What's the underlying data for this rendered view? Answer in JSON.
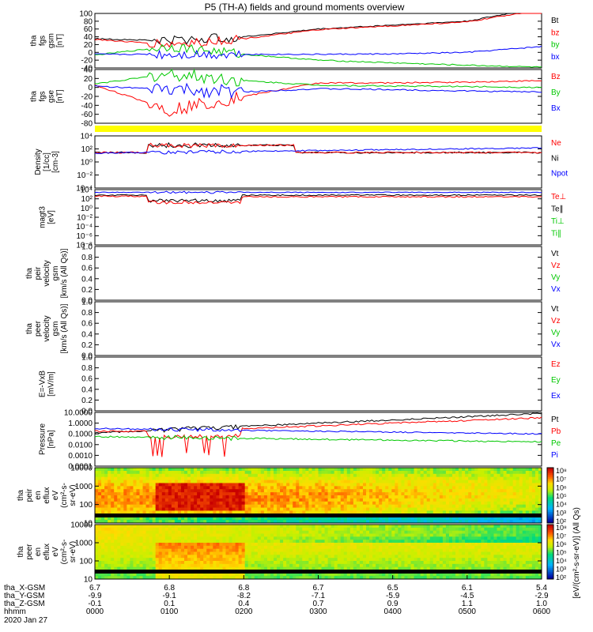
{
  "title": "P5 (TH-A) fields and ground moments overview",
  "footer": {
    "date": "2020 Jan 27",
    "row_labels": [
      "tha_X-GSM",
      "tha_Y-GSM",
      "tha_Z-GSM",
      "hhmm"
    ],
    "rows": [
      [
        "6.7",
        "6.8",
        "6.8",
        "6.7",
        "6.5",
        "6.1",
        "5.4"
      ],
      [
        "-9.9",
        "-9.1",
        "-8.2",
        "-7.1",
        "-5.9",
        "-4.5",
        "-2.9"
      ],
      [
        "-0.1",
        "0.1",
        "0.4",
        "0.7",
        "0.9",
        "1.1",
        "1.0"
      ],
      [
        "0000",
        "0100",
        "0200",
        "0300",
        "0400",
        "0500",
        "0600"
      ]
    ]
  },
  "colors": {
    "black": "#000000",
    "red": "#ff0000",
    "green": "#00c800",
    "blue": "#0000ff",
    "yellow": "#ffff00"
  },
  "panels": [
    {
      "id": "fgs-gsm",
      "ylabel": [
        "tha",
        "fgs",
        "gsm",
        "[nT]"
      ],
      "ticks": [
        "100",
        "80",
        "60",
        "40",
        "20",
        "0",
        "-20",
        "-40"
      ],
      "legend": [
        {
          "text": "Bt",
          "color": "black"
        },
        {
          "text": "bz",
          "color": "red"
        },
        {
          "text": "by",
          "color": "green"
        },
        {
          "text": "bx",
          "color": "blue"
        }
      ]
    },
    {
      "id": "fgs-gse",
      "ylabel": [
        "tha",
        "fgs",
        "gse",
        "[nT]"
      ],
      "ticks": [
        "40",
        "20",
        "0",
        "-20",
        "-40",
        "-60",
        "-80"
      ],
      "legend": [
        {
          "text": "Bz",
          "color": "red"
        },
        {
          "text": "By",
          "color": "green"
        },
        {
          "text": "Bx",
          "color": "blue"
        }
      ]
    },
    {
      "id": "density",
      "ylabel": [
        "Density",
        "[1/cc]",
        "[cm-3]"
      ],
      "ticks": [
        "10⁴",
        "10²",
        "10⁰",
        "10⁻²",
        "10⁻⁴"
      ],
      "legend": [
        {
          "text": "Ne",
          "color": "red"
        },
        {
          "text": "Ni",
          "color": "black"
        },
        {
          "text": "Npot",
          "color": "blue"
        }
      ]
    },
    {
      "id": "temperature",
      "ylabel": [
        "magt3",
        "[eV]"
      ],
      "ticks": [
        "10⁴",
        "10²",
        "10⁰",
        "10⁻²",
        "10⁻⁴",
        "10⁻⁶",
        "10⁻⁸"
      ],
      "legend": [
        {
          "text": "Te⊥",
          "color": "red"
        },
        {
          "text": "Te∥",
          "color": "black"
        },
        {
          "text": "Ti⊥",
          "color": "green"
        },
        {
          "text": "Ti∥",
          "color": "green"
        }
      ]
    },
    {
      "id": "peir-velocity",
      "ylabel": [
        "tha",
        "peir",
        "velocity",
        "gsm",
        "[km/s (All Qs)]"
      ],
      "ticks": [
        "1.0",
        "0.8",
        "0.6",
        "0.4",
        "0.2",
        "0.0"
      ],
      "legend": [
        {
          "text": "Vt",
          "color": "black"
        },
        {
          "text": "Vz",
          "color": "red"
        },
        {
          "text": "Vy",
          "color": "green"
        },
        {
          "text": "Vx",
          "color": "blue"
        }
      ]
    },
    {
      "id": "peer-velocity",
      "ylabel": [
        "tha",
        "peer",
        "velocity",
        "gsm",
        "[km/s (All Qs)]"
      ],
      "ticks": [
        "1.0",
        "0.8",
        "0.6",
        "0.4",
        "0.2",
        "0.0"
      ],
      "legend": [
        {
          "text": "Vt",
          "color": "black"
        },
        {
          "text": "Vz",
          "color": "red"
        },
        {
          "text": "Vy",
          "color": "green"
        },
        {
          "text": "Vx",
          "color": "blue"
        }
      ]
    },
    {
      "id": "efield",
      "ylabel": [
        "E=-VxB",
        "[mV/m]"
      ],
      "ticks": [
        "1.0",
        "0.8",
        "0.6",
        "0.4",
        "0.2",
        "0.0"
      ],
      "legend": [
        {
          "text": "Ez",
          "color": "red"
        },
        {
          "text": "Ey",
          "color": "green"
        },
        {
          "text": "Ex",
          "color": "blue"
        }
      ]
    },
    {
      "id": "pressure",
      "ylabel": [
        "Pressure",
        "[nPa]"
      ],
      "ticks": [
        "10.0000",
        "1.0000",
        "0.1000",
        "0.0100",
        "0.0010",
        "0.0001"
      ],
      "legend": [
        {
          "text": "Pt",
          "color": "black"
        },
        {
          "text": "Pb",
          "color": "red"
        },
        {
          "text": "Pe",
          "color": "green"
        },
        {
          "text": "Pi",
          "color": "blue"
        }
      ]
    },
    {
      "id": "peir-spec",
      "ylabel": [
        "tha",
        "peir",
        "en",
        "eflux",
        "eV",
        "(cm²-s-",
        "sr-eV)"
      ],
      "ticks": [
        "10000",
        "1000",
        "100",
        "10"
      ],
      "legend": []
    },
    {
      "id": "peer-spec",
      "ylabel": [
        "tha",
        "peer",
        "en",
        "eflux",
        "eV",
        "(cm²-s-",
        "sr-eV)"
      ],
      "ticks": [
        "10000",
        "1000",
        "100",
        "10"
      ],
      "legend": []
    }
  ],
  "colorbar": {
    "label": "[eV/(cm²-s-sr-eV)] (All Qs)",
    "ticks_top": [
      "10⁸",
      "10⁷",
      "10⁶",
      "10⁵",
      "10⁴",
      "10³",
      "10²"
    ],
    "ticks_bottom": [
      "10⁸",
      "10⁷",
      "10⁶",
      "10⁵",
      "10⁴",
      "10³",
      "10²"
    ]
  },
  "chart_data": [
    {
      "type": "line",
      "title": "P5 (TH-A) fields and ground moments overview",
      "ylabel": "tha fgs gsm [nT]",
      "ylim": [
        -40,
        100
      ],
      "x": [
        "0000",
        "0100",
        "0200",
        "0300",
        "0400",
        "0500",
        "0600"
      ],
      "series": [
        {
          "name": "Bt",
          "values": [
            35,
            30,
            40,
            60,
            70,
            80,
            115
          ]
        },
        {
          "name": "bz",
          "values": [
            33,
            20,
            35,
            58,
            68,
            78,
            110
          ]
        },
        {
          "name": "by",
          "values": [
            -7,
            15,
            -5,
            -20,
            -27,
            -33,
            -38
          ]
        },
        {
          "name": "bx",
          "values": [
            -5,
            -5,
            -5,
            -5,
            -4,
            0,
            15
          ]
        }
      ]
    },
    {
      "type": "line",
      "ylabel": "tha fgs gse [nT]",
      "ylim": [
        -80,
        40
      ],
      "x": [
        "0000",
        "0100",
        "0200",
        "0300",
        "0400",
        "0500",
        "0600"
      ],
      "series": [
        {
          "name": "Bz",
          "values": [
            5,
            -50,
            -20,
            10,
            10,
            12,
            15
          ]
        },
        {
          "name": "By",
          "values": [
            8,
            30,
            15,
            5,
            3,
            2,
            0
          ]
        },
        {
          "name": "Bx",
          "values": [
            3,
            -5,
            -10,
            -3,
            -5,
            -8,
            -10
          ]
        }
      ]
    }
  ]
}
